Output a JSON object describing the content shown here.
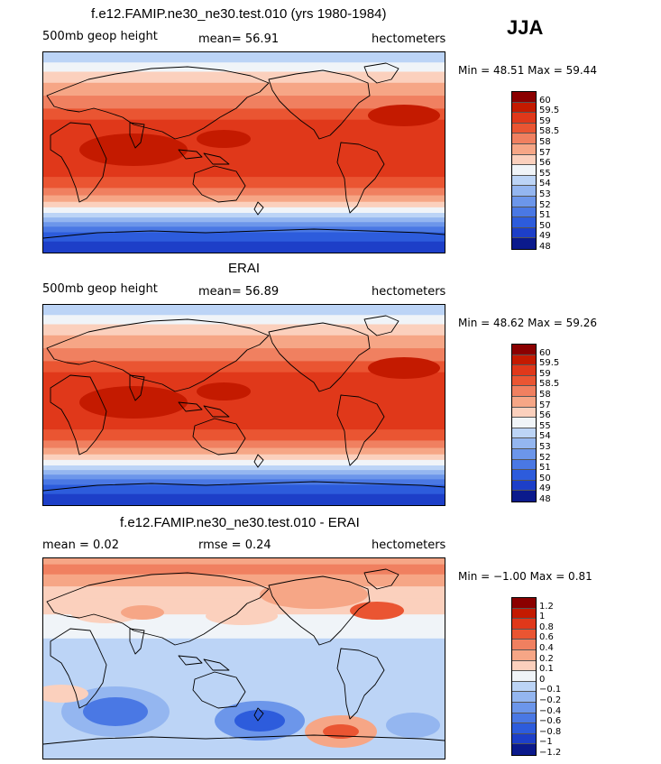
{
  "season": "JJA",
  "panels": [
    {
      "title": "f.e12.FAMIP.ne30_ne30.test.010 (yrs 1980-1984)",
      "left_label": "500mb geop height",
      "center_label": "mean=  56.91",
      "right_label": "hectometers",
      "minmax": "Min =   48.51  Max =   59.44",
      "levels": [
        "60",
        "59.5",
        "59",
        "58.5",
        "58",
        "57",
        "56",
        "55",
        "54",
        "53",
        "52",
        "51",
        "50",
        "49",
        "48"
      ],
      "kind": "field"
    },
    {
      "title": "ERAI",
      "left_label": "500mb geop height",
      "center_label": "mean=  56.89",
      "right_label": "hectometers",
      "minmax": "Min =   48.62  Max =   59.26",
      "levels": [
        "60",
        "59.5",
        "59",
        "58.5",
        "58",
        "57",
        "56",
        "55",
        "54",
        "53",
        "52",
        "51",
        "50",
        "49",
        "48"
      ],
      "kind": "field"
    },
    {
      "title": "f.e12.FAMIP.ne30_ne30.test.010 - ERAI",
      "left_label": "mean =    0.02",
      "center_label": "rmse =    0.24",
      "right_label": "hectometers",
      "minmax": "Min =  −1.00  Max =    0.81",
      "levels": [
        "1.2",
        "1",
        "0.8",
        "0.6",
        "0.4",
        "0.2",
        "0.1",
        "0",
        "−0.1",
        "−0.2",
        "−0.4",
        "−0.6",
        "−0.8",
        "−1",
        "−1.2"
      ],
      "kind": "diff"
    }
  ],
  "colors": [
    "#8b0000",
    "#c41a00",
    "#e0381a",
    "#ea5532",
    "#f08060",
    "#f6a686",
    "#fbd0bd",
    "#f0f4f8",
    "#bcd4f6",
    "#94b6f0",
    "#6c96ea",
    "#4a78e4",
    "#2d5cdc",
    "#1d3fc8",
    "#0b1a8c"
  ]
}
